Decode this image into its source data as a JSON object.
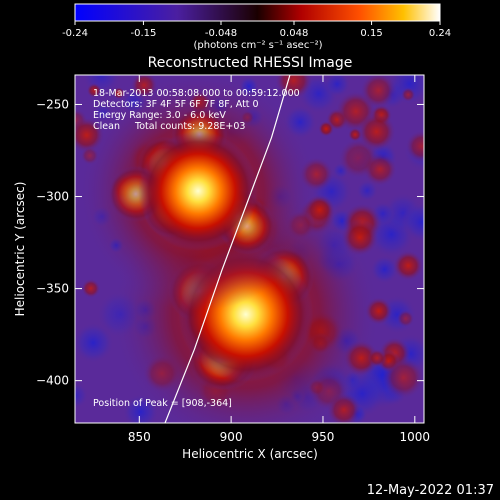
{
  "chart_data": {
    "type": "heatmap",
    "title": "Reconstructed RHESSI Image",
    "colorbar": {
      "ticks": [
        "-0.24",
        "-0.15",
        "-0.048",
        "0.048",
        "0.15",
        "0.24"
      ],
      "tick_values": [
        -0.24,
        -0.15,
        -0.048,
        0.048,
        0.15,
        0.24
      ],
      "range": [
        -0.24,
        0.24
      ],
      "unit_label": "(photons cm⁻² s⁻¹ asec⁻²)"
    },
    "xlabel": "Heliocentric X (arcsec)",
    "ylabel": "Heliocentric Y (arcsec)",
    "xlim": [
      815,
      1005
    ],
    "ylim": [
      -423,
      -234
    ],
    "xticks": [
      850,
      900,
      950,
      1000
    ],
    "xtick_labels": [
      "850",
      "900",
      "950",
      "1000"
    ],
    "yticks": [
      -250,
      -300,
      -350,
      -400
    ],
    "ytick_labels": [
      "−250",
      "−300",
      "−350",
      "−400"
    ],
    "annotations": [
      "18-Mar-2013 00:58:08.000 to 00:59:12.000",
      "Detectors: 3F 4F 5F 6F 7F 8F, Att 0",
      "Energy Range: 3.0 - 6.0 keV",
      "Clean     Total counts: 9.28E+03"
    ],
    "peak_label": "Position of Peak = [908,-364]",
    "sources": [
      {
        "x": 908,
        "y": -364,
        "peak": 0.24
      },
      {
        "x": 882,
        "y": -297,
        "peak": 0.2
      }
    ],
    "limb_curve": [
      [
        864,
        -423
      ],
      [
        880,
        -383
      ],
      [
        895,
        -340
      ],
      [
        910,
        -300
      ],
      [
        922,
        -268
      ],
      [
        932,
        -234
      ]
    ],
    "colors": {
      "background_map": "#5a2a9a",
      "limb": "#ffffff"
    }
  },
  "footer": {
    "timestamp": "12-May-2022 01:37"
  }
}
